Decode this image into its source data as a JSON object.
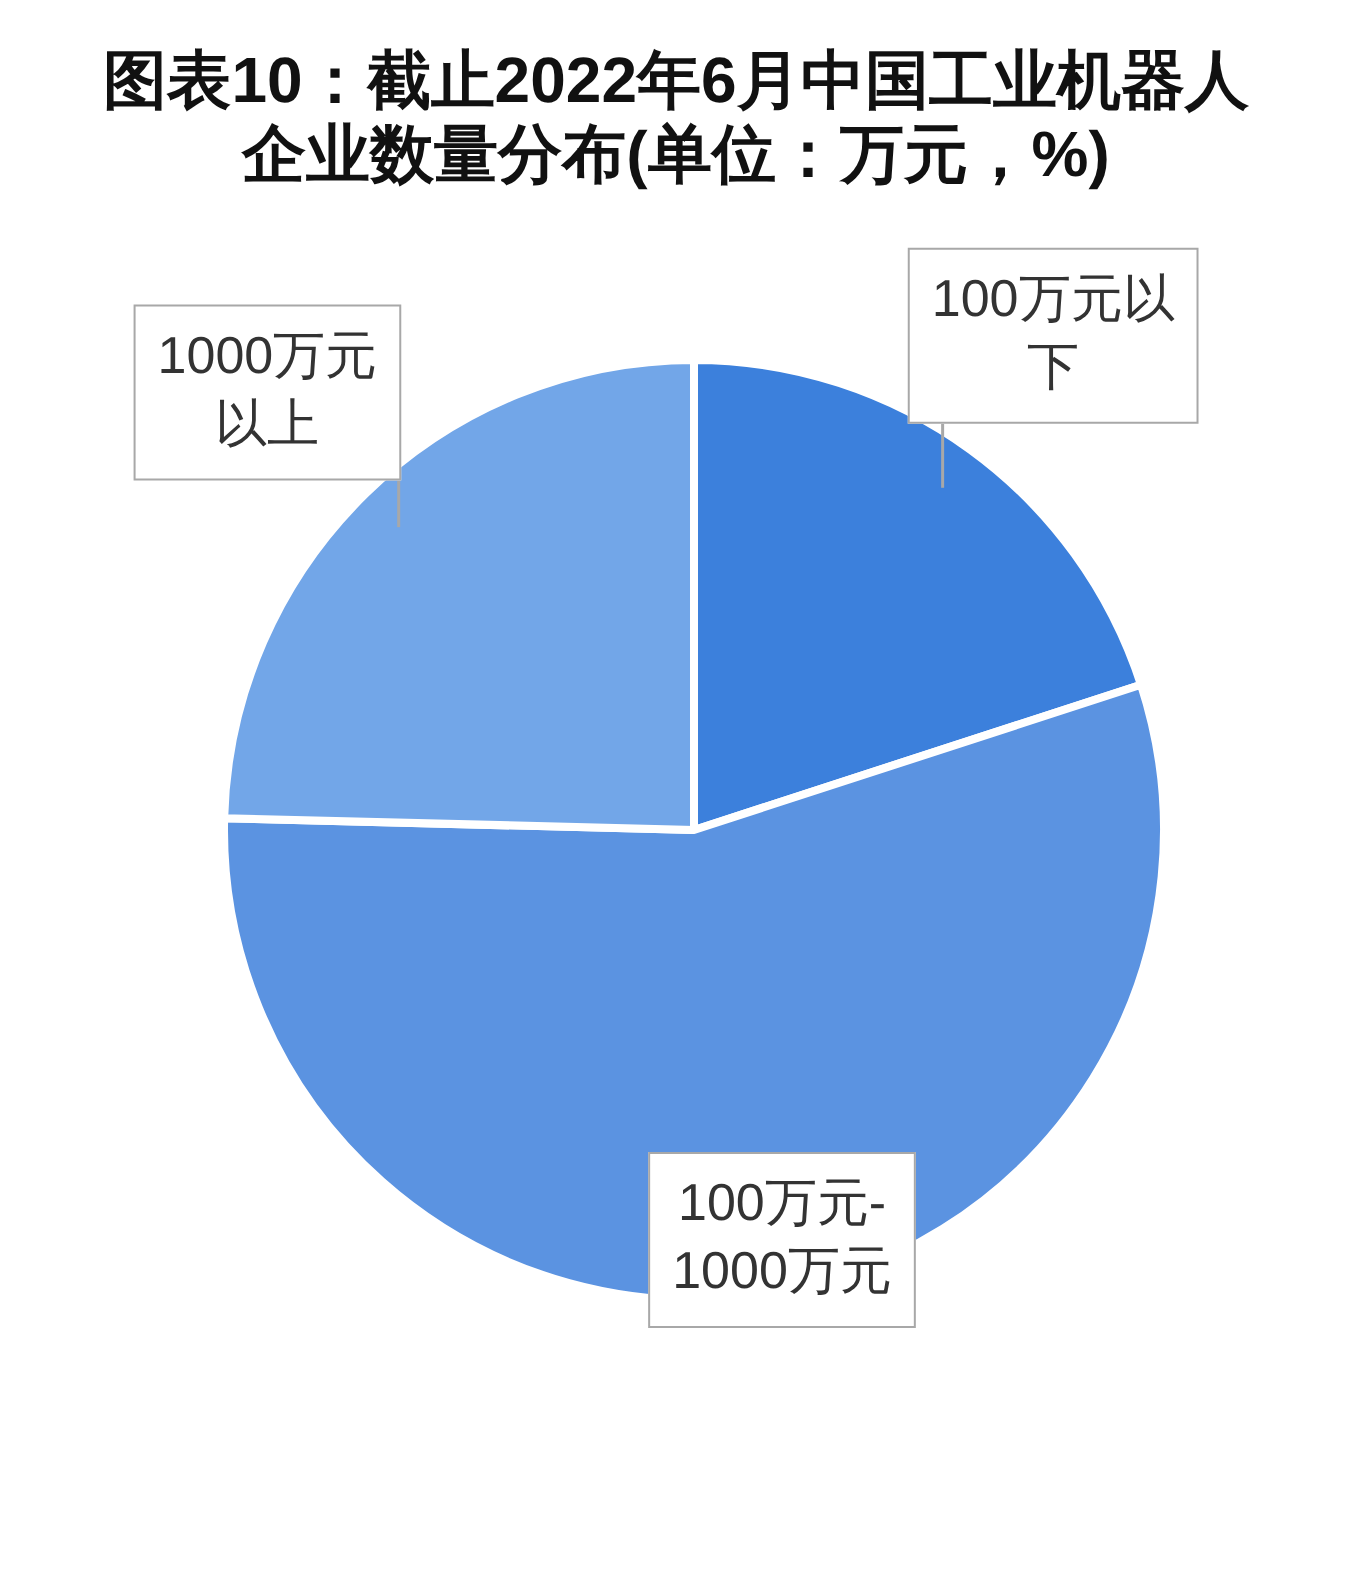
{
  "chart_data": {
    "type": "pie",
    "title": "图表10：截止2022年6月中国工业机器人企业数量分布(单位：万元，%)",
    "categories": [
      "100万元以下",
      "100万元-1000万元",
      "1000万元以上"
    ],
    "values": [
      20,
      55.4,
      24.6
    ],
    "colors": [
      "#3c80dc",
      "#5b93e1",
      "#72a6e8"
    ]
  }
}
